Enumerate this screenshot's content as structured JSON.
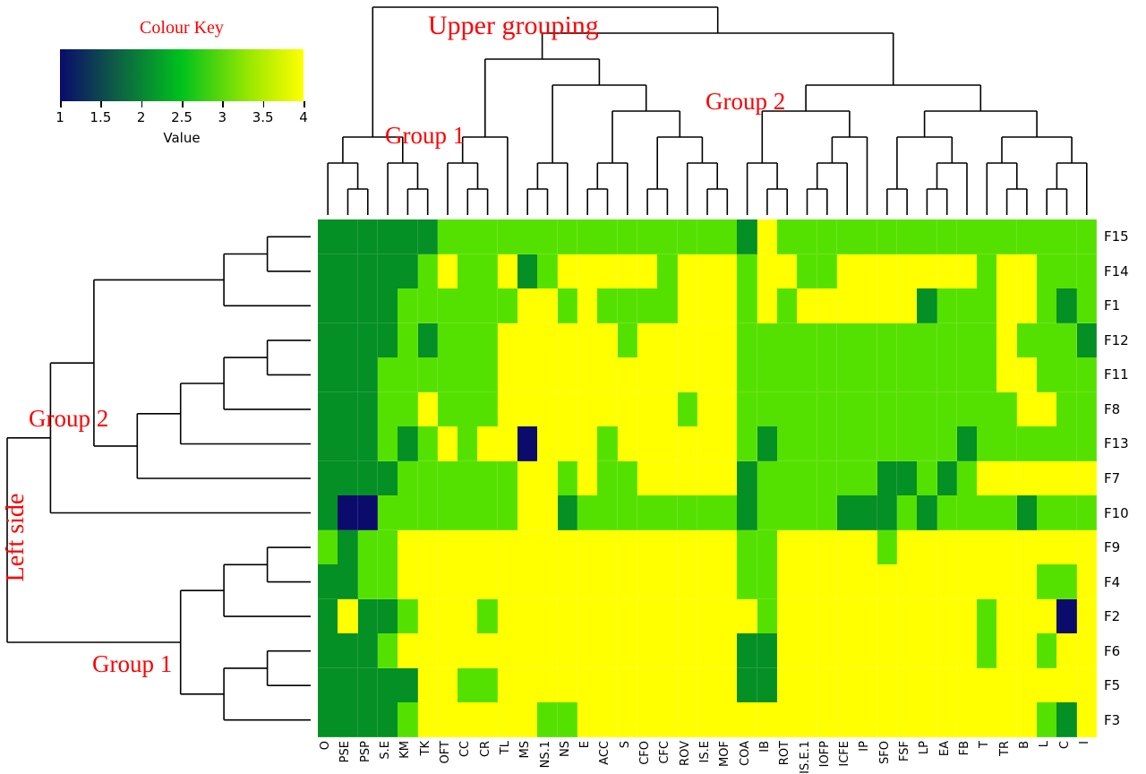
{
  "color_key": {
    "title": "Colour Key",
    "label": "Value",
    "ticks": [
      "1",
      "1.5",
      "2",
      "2.5",
      "3",
      "3.5",
      "4"
    ],
    "gradient": {
      "low": "#0b0b6b",
      "mid": "#00c21c",
      "high": "#ffff00"
    }
  },
  "annotations": {
    "upper_grouping": "Upper grouping",
    "top_group1": "Group 1",
    "top_group2": "Group 2",
    "left_side": "Left side",
    "left_group2": "Group 2",
    "left_group1": "Group 1",
    "color": "#ff0000"
  },
  "chart_data": {
    "type": "heatmap",
    "value_label": "Value",
    "value_range": [
      1,
      4
    ],
    "palette": {
      "anchors": [
        [
          1,
          "#0b0b6b"
        ],
        [
          2.5,
          "#00d200"
        ],
        [
          4,
          "#ffff00"
        ]
      ]
    },
    "columns": [
      "O",
      "PSE",
      "PSP",
      "S.E",
      "KM",
      "TK",
      "OFT",
      "CC",
      "CR",
      "TL",
      "MS",
      "NS.1",
      "NS",
      "E",
      "ACC",
      "S",
      "CFO",
      "CFC",
      "ROV",
      "IS.E",
      "MOF",
      "COA",
      "IB",
      "ROT",
      "IS.E.1",
      "IOFP",
      "ICFE",
      "IP",
      "SFO",
      "FSF",
      "LP",
      "EA",
      "FB",
      "T",
      "TR",
      "B",
      "L",
      "C",
      "I"
    ],
    "rows": [
      "F15",
      "F14",
      "F1",
      "F12",
      "F11",
      "F8",
      "F13",
      "F7",
      "F10",
      "F9",
      "F4",
      "F2",
      "F6",
      "F5",
      "F3"
    ],
    "values": [
      [
        2,
        2,
        2,
        2,
        2,
        2,
        3,
        3,
        3,
        3,
        3,
        3,
        3,
        3,
        3,
        3,
        3,
        3,
        3,
        3,
        3,
        2,
        4,
        3,
        3,
        3,
        3,
        3,
        3,
        3,
        3,
        3,
        3,
        3,
        3,
        3,
        3,
        3,
        3
      ],
      [
        2,
        2,
        2,
        2,
        2,
        3,
        4,
        3,
        3,
        4,
        2,
        3,
        4,
        4,
        4,
        4,
        4,
        3,
        4,
        4,
        4,
        3,
        4,
        4,
        3,
        3,
        4,
        4,
        4,
        4,
        4,
        4,
        4,
        3,
        4,
        4,
        3,
        3,
        3
      ],
      [
        2,
        2,
        2,
        2,
        3,
        3,
        3,
        3,
        3,
        3,
        4,
        4,
        3,
        4,
        3,
        3,
        3,
        3,
        4,
        4,
        4,
        3,
        4,
        3,
        4,
        4,
        4,
        4,
        4,
        4,
        2,
        3,
        3,
        3,
        4,
        4,
        3,
        2,
        3
      ],
      [
        2,
        2,
        2,
        2,
        3,
        2,
        3,
        3,
        3,
        4,
        4,
        4,
        4,
        4,
        4,
        3,
        4,
        4,
        4,
        4,
        4,
        3,
        3,
        3,
        3,
        3,
        3,
        3,
        3,
        3,
        3,
        3,
        3,
        3,
        4,
        3,
        3,
        3,
        2
      ],
      [
        2,
        2,
        2,
        3,
        3,
        3,
        3,
        3,
        3,
        4,
        4,
        4,
        4,
        4,
        4,
        4,
        4,
        4,
        4,
        4,
        4,
        3,
        3,
        3,
        3,
        3,
        3,
        3,
        3,
        3,
        3,
        3,
        3,
        3,
        4,
        4,
        3,
        3,
        3
      ],
      [
        2,
        2,
        2,
        3,
        3,
        4,
        3,
        3,
        3,
        4,
        4,
        4,
        4,
        4,
        4,
        4,
        4,
        4,
        3,
        4,
        4,
        3,
        3,
        3,
        3,
        3,
        3,
        3,
        3,
        3,
        3,
        3,
        3,
        3,
        3,
        4,
        4,
        3,
        3
      ],
      [
        2,
        2,
        2,
        3,
        2,
        3,
        4,
        3,
        4,
        4,
        1,
        4,
        4,
        4,
        3,
        4,
        4,
        4,
        4,
        4,
        4,
        3,
        2,
        3,
        3,
        3,
        3,
        3,
        3,
        3,
        3,
        3,
        2,
        3,
        3,
        3,
        3,
        3,
        3
      ],
      [
        2,
        2,
        2,
        2,
        3,
        3,
        3,
        3,
        3,
        3,
        4,
        4,
        3,
        4,
        3,
        3,
        4,
        4,
        4,
        4,
        4,
        2,
        3,
        3,
        3,
        3,
        3,
        3,
        2,
        2,
        3,
        2,
        3,
        4,
        4,
        4,
        4,
        4,
        4
      ],
      [
        2,
        1,
        1,
        3,
        3,
        3,
        3,
        3,
        3,
        3,
        4,
        4,
        2,
        3,
        3,
        3,
        3,
        3,
        3,
        3,
        3,
        2,
        3,
        3,
        3,
        3,
        2,
        2,
        2,
        3,
        2,
        3,
        3,
        3,
        3,
        2,
        3,
        3,
        3
      ],
      [
        3,
        2,
        3,
        3,
        4,
        4,
        4,
        4,
        4,
        4,
        4,
        4,
        4,
        4,
        4,
        4,
        4,
        4,
        4,
        4,
        4,
        3,
        3,
        4,
        4,
        4,
        4,
        4,
        3,
        4,
        4,
        4,
        4,
        4,
        4,
        4,
        4,
        4,
        4
      ],
      [
        2,
        2,
        3,
        3,
        4,
        4,
        4,
        4,
        4,
        4,
        4,
        4,
        4,
        4,
        4,
        4,
        4,
        4,
        4,
        4,
        4,
        3,
        3,
        4,
        4,
        4,
        4,
        4,
        4,
        4,
        4,
        4,
        4,
        4,
        4,
        4,
        3,
        3,
        4
      ],
      [
        2,
        4,
        2,
        2,
        3,
        4,
        4,
        4,
        3,
        4,
        4,
        4,
        4,
        4,
        4,
        4,
        4,
        4,
        4,
        4,
        4,
        4,
        3,
        4,
        4,
        4,
        4,
        4,
        4,
        4,
        4,
        4,
        4,
        3,
        4,
        4,
        4,
        1,
        4
      ],
      [
        2,
        2,
        2,
        3,
        4,
        4,
        4,
        4,
        4,
        4,
        4,
        4,
        4,
        4,
        4,
        4,
        4,
        4,
        4,
        4,
        4,
        2,
        2,
        4,
        4,
        4,
        4,
        4,
        4,
        4,
        4,
        4,
        4,
        3,
        4,
        4,
        3,
        4,
        4
      ],
      [
        2,
        2,
        2,
        2,
        2,
        4,
        4,
        3,
        3,
        4,
        4,
        4,
        4,
        4,
        4,
        4,
        4,
        4,
        4,
        4,
        4,
        2,
        2,
        4,
        4,
        4,
        4,
        4,
        4,
        4,
        4,
        4,
        4,
        4,
        4,
        4,
        4,
        4,
        4
      ],
      [
        2,
        2,
        2,
        2,
        3,
        4,
        4,
        4,
        4,
        4,
        4,
        3,
        3,
        4,
        4,
        4,
        4,
        4,
        4,
        4,
        4,
        4,
        4,
        4,
        4,
        4,
        4,
        4,
        4,
        4,
        4,
        4,
        4,
        4,
        4,
        4,
        3,
        2,
        4
      ]
    ],
    "col_tree": [
      [
        [
          0,
          [
            1,
            2
          ]
        ],
        [
          3,
          [
            4,
            5
          ]
        ]
      ],
      [
        [
          [
            [
              6,
              [
                7,
                8
              ]
            ],
            9
          ],
          [
            [
              [
                10,
                11
              ],
              12
            ],
            [
              [
                [
                  13,
                  14
                ],
                15
              ],
              [
                [
                  16,
                  17
                ],
                [
                  18,
                  [
                    19,
                    20
                  ]
                ]
              ]
            ]
          ]
        ],
        [
          [
            [
              21,
              [
                22,
                23
              ]
            ],
            [
              [
                [
                  24,
                  25
                ],
                26
              ],
              27
            ]
          ],
          [
            [
              [
                28,
                29
              ],
              [
                [
                  30,
                  31
                ],
                32
              ]
            ],
            [
              [
                33,
                [
                  34,
                  35
                ]
              ],
              [
                [
                  36,
                  37
                ],
                38
              ]
            ]
          ]
        ]
      ]
    ],
    "row_tree": [
      [
        [
          [
            [
              0,
              1
            ],
            2
          ],
          [
            [
              [
                [
                  3,
                  4
                ],
                5
              ],
              6
            ],
            7
          ]
        ],
        8
      ],
      [
        [
          [
            9,
            10
          ],
          11
        ],
        [
          [
            12,
            13
          ],
          14
        ]
      ]
    ]
  }
}
